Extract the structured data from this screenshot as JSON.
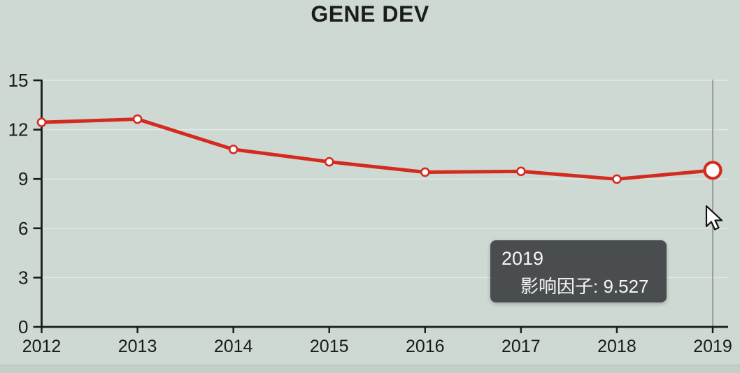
{
  "page": {
    "background_color": "#cdd9d2",
    "bottom_strip_color": "#c2cec8"
  },
  "chart_data": {
    "type": "line",
    "title": "GENE DEV",
    "categories": [
      "2012",
      "2013",
      "2014",
      "2015",
      "2016",
      "2017",
      "2018",
      "2019"
    ],
    "series": [
      {
        "name": "影响因子",
        "color": "#d32b20",
        "values": [
          12.444,
          12.639,
          10.798,
          10.042,
          9.413,
          9.462,
          8.99,
          9.527
        ]
      }
    ],
    "xlabel": "",
    "ylabel": "",
    "ylim": [
      0,
      15
    ],
    "yticks": [
      0,
      3,
      6,
      9,
      12,
      15
    ],
    "grid": "faint horizontal white lines at y ticks",
    "legend_position": "none",
    "axis_color": "#1a1a1a",
    "tick_label_color": "#1a1a1a",
    "marker_fill": "#ffffff",
    "guideline_color": "#8d9190",
    "highlight_index": 7
  },
  "tooltip": {
    "title": "2019",
    "text": "影响因子: 9.527",
    "dot_color": "#d32b20"
  },
  "cursor": {
    "type": "arrow-pointer"
  }
}
